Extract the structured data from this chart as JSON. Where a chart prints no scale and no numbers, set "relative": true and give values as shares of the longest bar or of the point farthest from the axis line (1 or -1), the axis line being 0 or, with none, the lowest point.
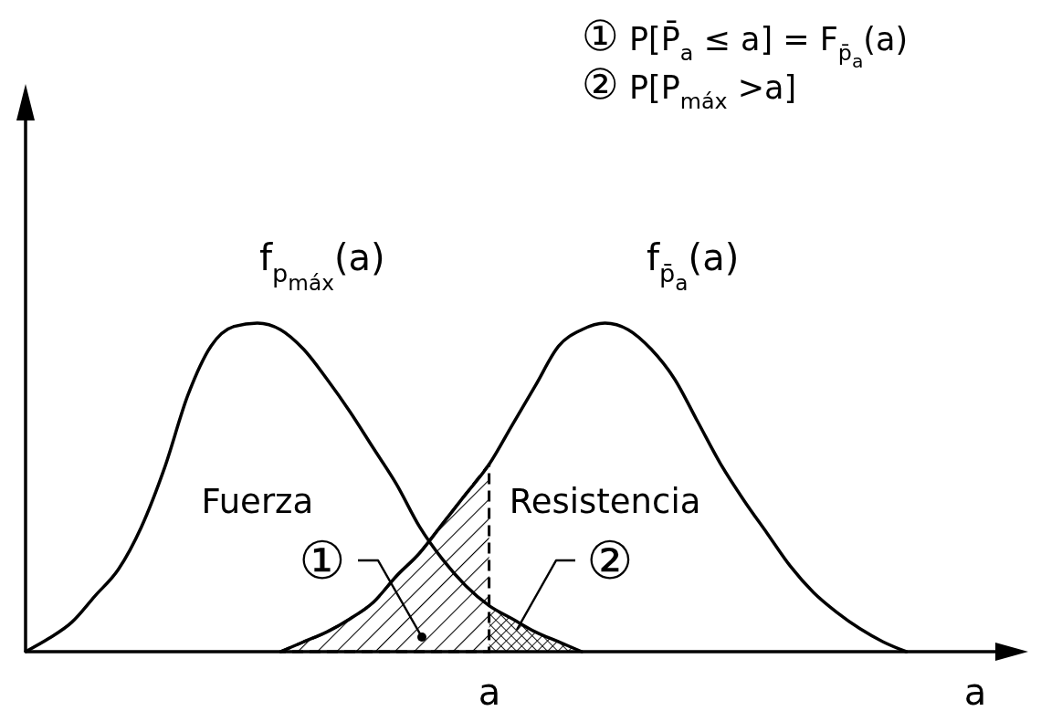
{
  "chart_data": {
    "type": "line",
    "relative": true,
    "xlabel": "a",
    "categories": [
      null,
      null,
      null,
      null,
      null,
      null,
      null,
      null,
      null,
      null,
      null,
      null,
      null,
      null,
      null,
      null,
      null,
      null,
      null,
      null,
      null,
      null,
      null,
      null,
      null,
      null,
      null,
      null,
      null,
      null,
      null,
      null,
      null,
      null,
      null,
      null,
      null,
      null,
      null,
      null,
      null,
      null,
      null
    ],
    "series": [
      {
        "name": "Fuerza",
        "color": "#000000",
        "values": [
          0,
          0.04,
          0.09,
          0.17,
          0.25,
          0.38,
          0.56,
          0.78,
          0.93,
          0.99,
          1,
          0.98,
          0.92,
          0.83,
          0.73,
          0.62,
          0.51,
          0.38,
          0.28,
          0.2,
          0.14,
          0.1,
          0.06,
          0.03,
          0,
          null,
          null,
          null,
          null,
          null,
          null,
          null,
          null,
          null,
          null,
          null,
          null,
          null,
          null,
          null,
          null,
          null,
          null
        ]
      },
      {
        "name": "Resistencia",
        "color": "#000000",
        "values": [
          null,
          null,
          null,
          null,
          null,
          null,
          null,
          null,
          null,
          null,
          null,
          0,
          0.03,
          0.06,
          0.1,
          0.15,
          0.23,
          0.3,
          0.39,
          0.48,
          0.57,
          0.69,
          0.81,
          0.93,
          0.98,
          1,
          0.98,
          0.92,
          0.83,
          0.7,
          0.57,
          0.46,
          0.36,
          0.26,
          0.18,
          0.12,
          0.07,
          0.03,
          0,
          null,
          null,
          null,
          null
        ]
      },
      {
        "type": "area",
        "color": "#000000",
        "line_style": "dashed",
        "values": [
          null,
          null,
          null,
          null,
          null,
          null,
          null,
          null,
          null,
          null,
          null,
          0,
          0.03,
          0.06,
          0.1,
          0.15,
          0.23,
          0.3,
          0.39,
          0.48,
          0.57,
          null,
          null,
          null,
          null,
          null,
          null,
          null,
          null,
          null,
          null,
          null,
          null,
          null,
          null,
          null,
          null,
          null,
          null,
          null,
          null,
          null,
          null
        ]
      },
      {
        "type": "area",
        "color": "#000000",
        "values": [
          null,
          null,
          null,
          null,
          null,
          null,
          null,
          null,
          null,
          null,
          null,
          null,
          null,
          null,
          null,
          null,
          null,
          null,
          null,
          null,
          0.14,
          0.1,
          0.06,
          0.03,
          0,
          null,
          null,
          null,
          null,
          null,
          null,
          null,
          null,
          null,
          null,
          null,
          null,
          null,
          null,
          null,
          null,
          null,
          null
        ]
      }
    ],
    "annotations": [
      "① P[P̄$_{a}$ ≤ a] = F$_{p̄}$$_{a}$(a)",
      "② P[P$_{máx}$ >a]",
      "f$_{p}$$_{máx}$(a)",
      "f$_{p̄}$$_{a}$(a)",
      "①",
      "②",
      "a"
    ]
  }
}
